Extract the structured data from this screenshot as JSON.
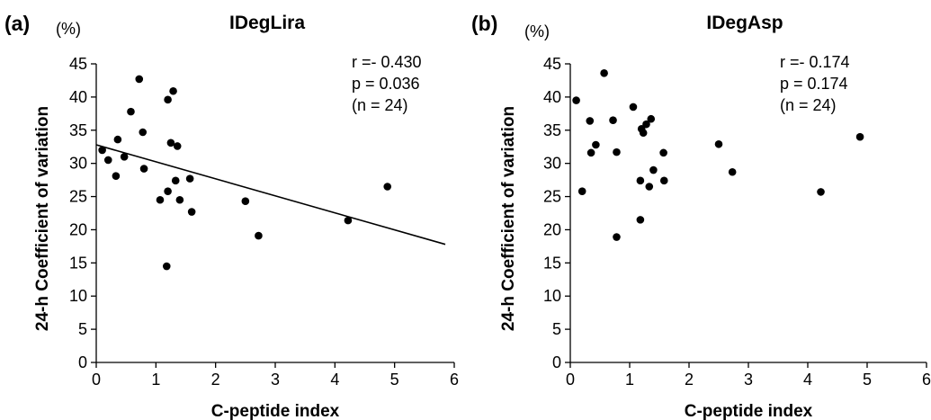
{
  "chart_data": [
    {
      "type": "scatter",
      "panel_label": "(a)",
      "title": "IDegLira",
      "y_unit": "(%)",
      "xlabel": "C-peptide index",
      "ylabel": "24-h Coefficient of  variation",
      "xlim": [
        0,
        6
      ],
      "ylim": [
        0,
        45
      ],
      "x_ticks": [
        "0",
        "1",
        "2",
        "3",
        "4",
        "5",
        "6"
      ],
      "y_ticks": [
        "0",
        "5",
        "10",
        "15",
        "20",
        "25",
        "30",
        "35",
        "40",
        "45"
      ],
      "stats": [
        "r =- 0.430",
        "p = 0.036",
        "(n = 24)"
      ],
      "regression_line": {
        "x": [
          0,
          5.85
        ],
        "y": [
          32.8,
          17.8
        ]
      },
      "points": [
        {
          "x": 0.1,
          "y": 32.0
        },
        {
          "x": 0.2,
          "y": 30.5
        },
        {
          "x": 0.33,
          "y": 28.1
        },
        {
          "x": 0.36,
          "y": 33.6
        },
        {
          "x": 0.47,
          "y": 31.0
        },
        {
          "x": 0.58,
          "y": 37.8
        },
        {
          "x": 0.72,
          "y": 42.7
        },
        {
          "x": 0.78,
          "y": 34.7
        },
        {
          "x": 0.8,
          "y": 29.2
        },
        {
          "x": 1.07,
          "y": 24.5
        },
        {
          "x": 1.18,
          "y": 14.5
        },
        {
          "x": 1.2,
          "y": 25.8
        },
        {
          "x": 1.2,
          "y": 39.6
        },
        {
          "x": 1.25,
          "y": 33.1
        },
        {
          "x": 1.29,
          "y": 40.9
        },
        {
          "x": 1.33,
          "y": 27.4
        },
        {
          "x": 1.36,
          "y": 32.6
        },
        {
          "x": 1.4,
          "y": 24.5
        },
        {
          "x": 1.57,
          "y": 27.7
        },
        {
          "x": 1.6,
          "y": 22.7
        },
        {
          "x": 2.5,
          "y": 24.3
        },
        {
          "x": 2.72,
          "y": 19.1
        },
        {
          "x": 4.22,
          "y": 21.4
        },
        {
          "x": 4.88,
          "y": 26.5
        }
      ]
    },
    {
      "type": "scatter",
      "panel_label": "(b)",
      "title": "IDegAsp",
      "y_unit": "(%)",
      "xlabel": "C-peptide index",
      "ylabel": "24-h Coefficient of  variation",
      "xlim": [
        0,
        6
      ],
      "ylim": [
        0,
        45
      ],
      "x_ticks": [
        "0",
        "1",
        "2",
        "3",
        "4",
        "5",
        "6"
      ],
      "y_ticks": [
        "0",
        "5",
        "10",
        "15",
        "20",
        "25",
        "30",
        "35",
        "40",
        "45"
      ],
      "stats": [
        "r =- 0.174",
        "p = 0.174",
        "(n = 24)"
      ],
      "points": [
        {
          "x": 0.1,
          "y": 39.5
        },
        {
          "x": 0.2,
          "y": 25.8
        },
        {
          "x": 0.33,
          "y": 36.4
        },
        {
          "x": 0.35,
          "y": 31.6
        },
        {
          "x": 0.43,
          "y": 32.8
        },
        {
          "x": 0.57,
          "y": 43.6
        },
        {
          "x": 0.72,
          "y": 36.5
        },
        {
          "x": 0.78,
          "y": 31.7
        },
        {
          "x": 0.78,
          "y": 18.9
        },
        {
          "x": 1.06,
          "y": 38.5
        },
        {
          "x": 1.18,
          "y": 21.5
        },
        {
          "x": 1.18,
          "y": 27.4
        },
        {
          "x": 1.2,
          "y": 35.2
        },
        {
          "x": 1.23,
          "y": 34.6
        },
        {
          "x": 1.28,
          "y": 35.9
        },
        {
          "x": 1.33,
          "y": 26.5
        },
        {
          "x": 1.36,
          "y": 36.7
        },
        {
          "x": 1.4,
          "y": 29.0
        },
        {
          "x": 1.57,
          "y": 31.6
        },
        {
          "x": 1.58,
          "y": 27.4
        },
        {
          "x": 2.5,
          "y": 32.9
        },
        {
          "x": 2.73,
          "y": 28.7
        },
        {
          "x": 4.22,
          "y": 25.7
        },
        {
          "x": 4.88,
          "y": 34.0
        }
      ]
    }
  ]
}
